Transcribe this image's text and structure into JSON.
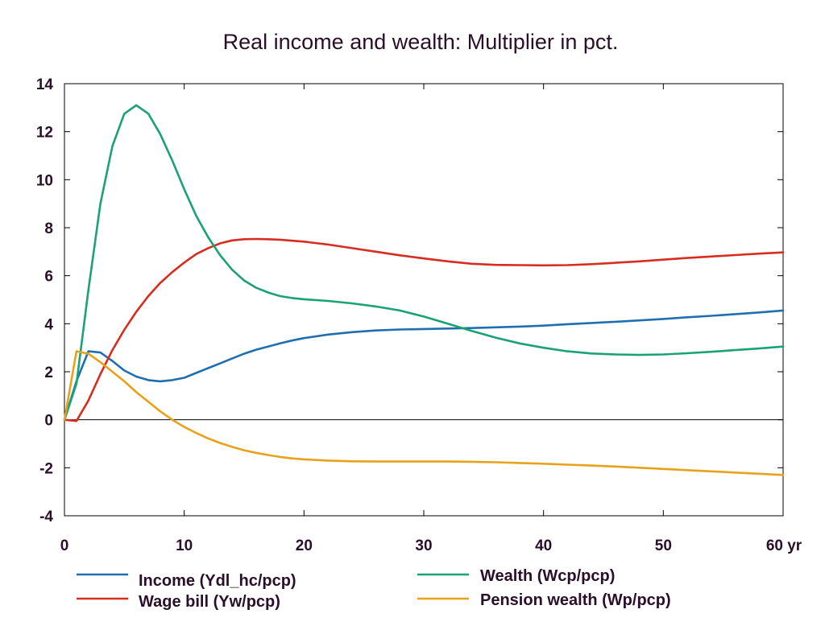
{
  "chart_data": {
    "type": "line",
    "title": "Real income and wealth: Multiplier in pct.",
    "xlabel": "",
    "ylabel": "",
    "x_unit": "yr",
    "xlim": [
      0,
      60
    ],
    "ylim": [
      -4,
      14
    ],
    "x_ticks": [
      0,
      10,
      20,
      30,
      40,
      50,
      60
    ],
    "y_ticks": [
      -4,
      -2,
      0,
      2,
      4,
      6,
      8,
      10,
      12,
      14
    ],
    "zero_line": true,
    "grid": false,
    "legend_position": "bottom",
    "series": [
      {
        "name": "Income (Ydl_hc/pcp)",
        "color": "#1f6fb0",
        "x": [
          0,
          1,
          2,
          3,
          4,
          5,
          6,
          7,
          8,
          9,
          10,
          11,
          12,
          13,
          14,
          15,
          16,
          17,
          18,
          19,
          20,
          22,
          24,
          26,
          28,
          30,
          32,
          34,
          36,
          38,
          40,
          42,
          44,
          46,
          48,
          50,
          52,
          54,
          56,
          58,
          60
        ],
        "y": [
          0,
          1.6,
          2.85,
          2.8,
          2.45,
          2.05,
          1.8,
          1.65,
          1.6,
          1.65,
          1.75,
          1.95,
          2.15,
          2.35,
          2.55,
          2.75,
          2.92,
          3.05,
          3.18,
          3.3,
          3.4,
          3.55,
          3.65,
          3.72,
          3.76,
          3.78,
          3.8,
          3.82,
          3.85,
          3.88,
          3.92,
          3.98,
          4.03,
          4.08,
          4.14,
          4.2,
          4.27,
          4.33,
          4.4,
          4.47,
          4.55
        ]
      },
      {
        "name": "Wage bill (Yw/pcp)",
        "color": "#d62d20",
        "x": [
          0,
          1,
          2,
          3,
          4,
          5,
          6,
          7,
          8,
          9,
          10,
          11,
          12,
          13,
          14,
          15,
          16,
          17,
          18,
          20,
          22,
          24,
          26,
          28,
          30,
          32,
          34,
          36,
          38,
          40,
          42,
          44,
          46,
          48,
          50,
          52,
          54,
          56,
          58,
          60
        ],
        "y": [
          0,
          -0.05,
          0.8,
          1.9,
          2.9,
          3.75,
          4.5,
          5.15,
          5.7,
          6.15,
          6.55,
          6.9,
          7.15,
          7.35,
          7.47,
          7.52,
          7.53,
          7.52,
          7.5,
          7.42,
          7.3,
          7.15,
          7.0,
          6.85,
          6.72,
          6.6,
          6.5,
          6.45,
          6.44,
          6.43,
          6.44,
          6.48,
          6.54,
          6.6,
          6.67,
          6.74,
          6.8,
          6.86,
          6.92,
          6.97
        ]
      },
      {
        "name": "Wealth (Wcp/pcp)",
        "color": "#1aa274",
        "x": [
          0,
          1,
          2,
          3,
          4,
          5,
          6,
          7,
          8,
          9,
          10,
          11,
          12,
          13,
          14,
          15,
          16,
          17,
          18,
          19,
          20,
          22,
          24,
          26,
          28,
          30,
          32,
          34,
          36,
          38,
          40,
          42,
          44,
          46,
          48,
          50,
          52,
          54,
          56,
          58,
          60
        ],
        "y": [
          0,
          1.5,
          5.4,
          9.0,
          11.4,
          12.75,
          13.1,
          12.75,
          11.9,
          10.8,
          9.6,
          8.5,
          7.6,
          6.85,
          6.25,
          5.8,
          5.5,
          5.3,
          5.15,
          5.07,
          5.02,
          4.95,
          4.85,
          4.72,
          4.55,
          4.3,
          4.0,
          3.7,
          3.42,
          3.18,
          3.0,
          2.85,
          2.76,
          2.72,
          2.7,
          2.72,
          2.77,
          2.83,
          2.9,
          2.97,
          3.05
        ]
      },
      {
        "name": "Pension wealth (Wp/pcp)",
        "color": "#e8a21a",
        "x": [
          0,
          1,
          2,
          3,
          4,
          5,
          6,
          7,
          8,
          9,
          10,
          11,
          12,
          13,
          14,
          15,
          16,
          17,
          18,
          19,
          20,
          22,
          24,
          26,
          28,
          30,
          32,
          34,
          36,
          38,
          40,
          42,
          44,
          46,
          48,
          50,
          52,
          54,
          56,
          58,
          60
        ],
        "y": [
          0,
          2.85,
          2.75,
          2.4,
          2.0,
          1.6,
          1.15,
          0.75,
          0.35,
          0.0,
          -0.3,
          -0.55,
          -0.78,
          -0.97,
          -1.13,
          -1.27,
          -1.38,
          -1.47,
          -1.55,
          -1.61,
          -1.65,
          -1.7,
          -1.73,
          -1.74,
          -1.74,
          -1.74,
          -1.74,
          -1.75,
          -1.77,
          -1.8,
          -1.83,
          -1.87,
          -1.91,
          -1.95,
          -2.0,
          -2.05,
          -2.1,
          -2.15,
          -2.2,
          -2.25,
          -2.3
        ]
      }
    ]
  }
}
